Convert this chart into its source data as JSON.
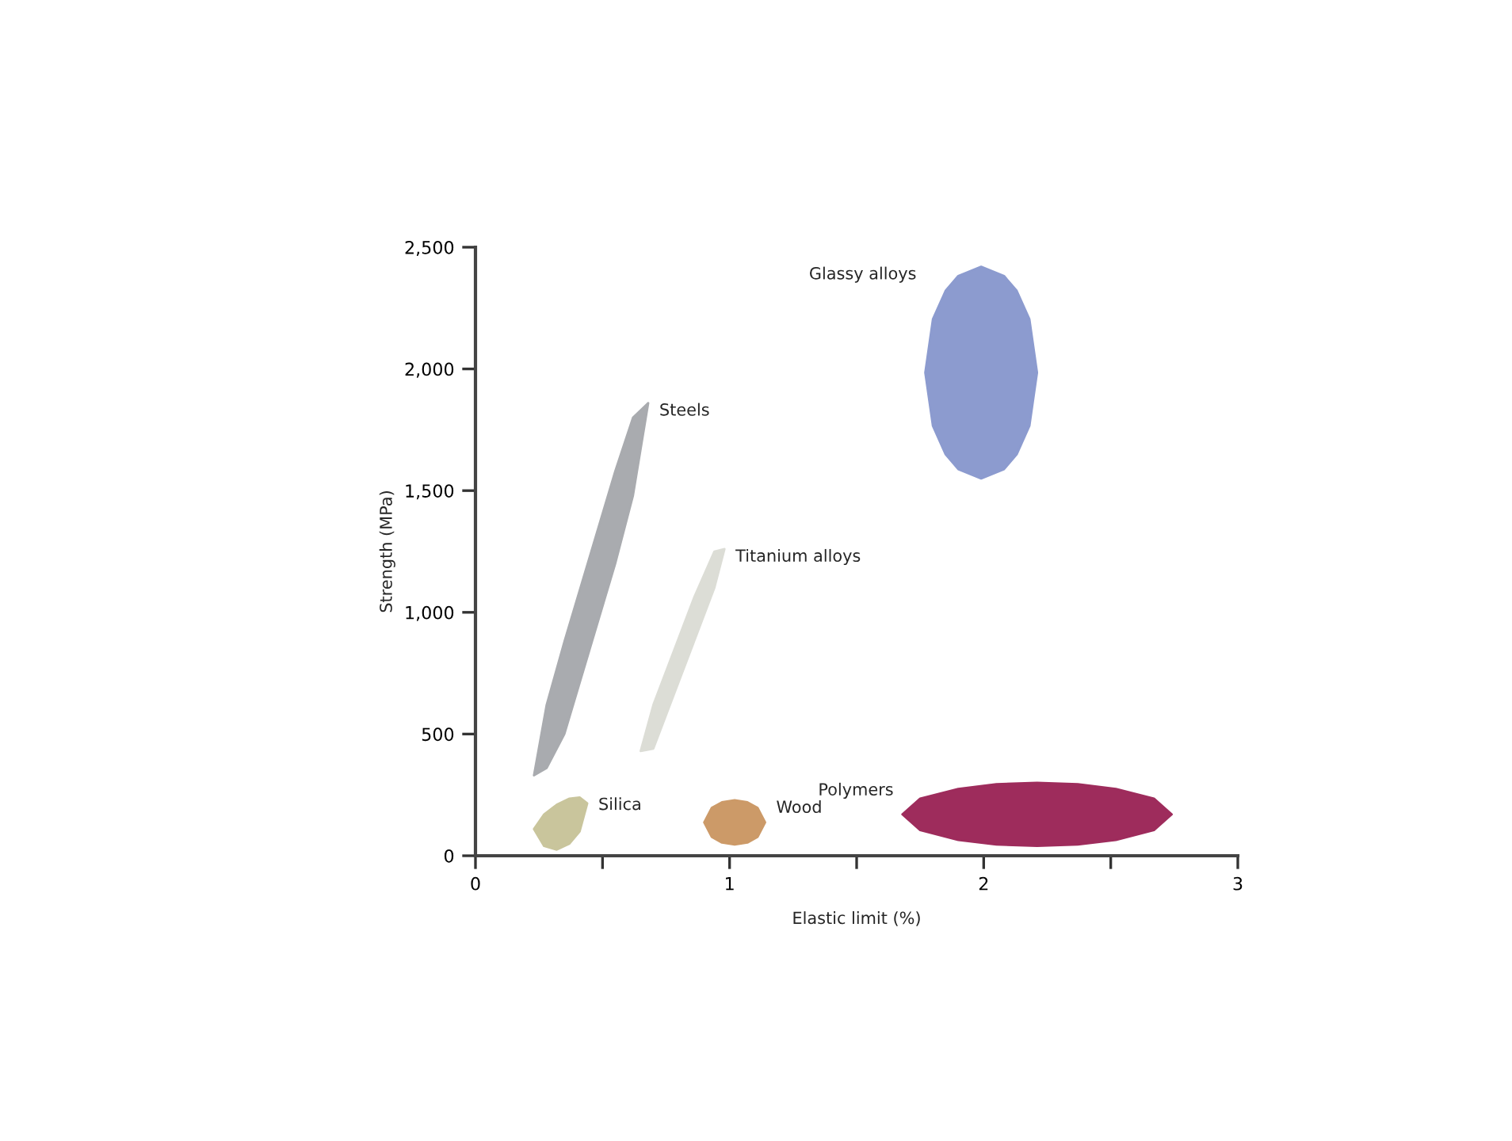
{
  "chart_data": {
    "type": "area",
    "xlabel": "Elastic limit (%)",
    "ylabel": "Strength (MPa)",
    "xlim": [
      0,
      3
    ],
    "ylim": [
      0,
      2500
    ],
    "xticks": [
      0,
      {
        "value": 0.5,
        "label": null
      },
      1,
      {
        "value": 1.5,
        "label": null
      },
      2,
      {
        "value": 2.5,
        "label": null
      },
      3
    ],
    "yticks": [
      {
        "value": 0,
        "label": "0"
      },
      {
        "value": 500,
        "label": "500"
      },
      {
        "value": 1000,
        "label": "1,000"
      },
      {
        "value": 1500,
        "label": "1,500"
      },
      {
        "value": 2000,
        "label": "2,000"
      },
      {
        "value": 2500,
        "label": "2,500"
      }
    ],
    "grid": false,
    "legend": false,
    "series": [
      {
        "name": "Steels",
        "color": "#a9abaf",
        "x": [
          0.23,
          0.28,
          0.35,
          0.45,
          0.55,
          0.62,
          0.68,
          0.62,
          0.55,
          0.45,
          0.35,
          0.28
        ],
        "values": [
          330,
          620,
          880,
          1230,
          1580,
          1800,
          1860,
          1480,
          1200,
          850,
          500,
          360
        ]
      },
      {
        "name": "Titanium alloys",
        "color": "#dcddd6",
        "x": [
          0.65,
          0.7,
          0.78,
          0.86,
          0.94,
          0.98,
          0.94,
          0.86,
          0.78,
          0.7
        ],
        "values": [
          430,
          620,
          840,
          1060,
          1250,
          1260,
          1100,
          880,
          660,
          440
        ]
      },
      {
        "name": "Glassy alloys",
        "color": "#8c9bcf",
        "x": [
          1.77,
          1.8,
          1.85,
          1.9,
          1.99,
          2.08,
          2.13,
          2.18,
          2.21,
          2.18,
          2.13,
          2.08,
          1.99,
          1.9,
          1.85,
          1.8
        ],
        "values": [
          1985,
          2204,
          2321,
          2382,
          2420,
          2382,
          2321,
          2204,
          1985,
          1766,
          1649,
          1588,
          1550,
          1588,
          1649,
          1766
        ]
      },
      {
        "name": "Silica",
        "color": "#c9c59c",
        "x": [
          0.23,
          0.27,
          0.32,
          0.37,
          0.41,
          0.44,
          0.41,
          0.37,
          0.32,
          0.27
        ],
        "values": [
          110,
          170,
          210,
          235,
          240,
          215,
          100,
          50,
          25,
          40
        ]
      },
      {
        "name": "Wood",
        "color": "#cc9a68",
        "x": [
          0.9,
          0.93,
          0.97,
          1.02,
          1.07,
          1.11,
          1.14,
          1.11,
          1.07,
          1.02,
          0.97,
          0.93
        ],
        "values": [
          137,
          197,
          220,
          228,
          220,
          197,
          137,
          77,
          54,
          46,
          54,
          77
        ]
      },
      {
        "name": "Polymers",
        "color": "#9e2c5c",
        "x": [
          1.68,
          1.75,
          1.9,
          2.05,
          2.21,
          2.37,
          2.52,
          2.67,
          2.74,
          2.67,
          2.52,
          2.37,
          2.21,
          2.05,
          1.9,
          1.75
        ],
        "values": [
          170,
          235,
          275,
          294,
          300,
          294,
          275,
          235,
          170,
          105,
          65,
          46,
          40,
          46,
          65,
          105
        ]
      }
    ]
  }
}
